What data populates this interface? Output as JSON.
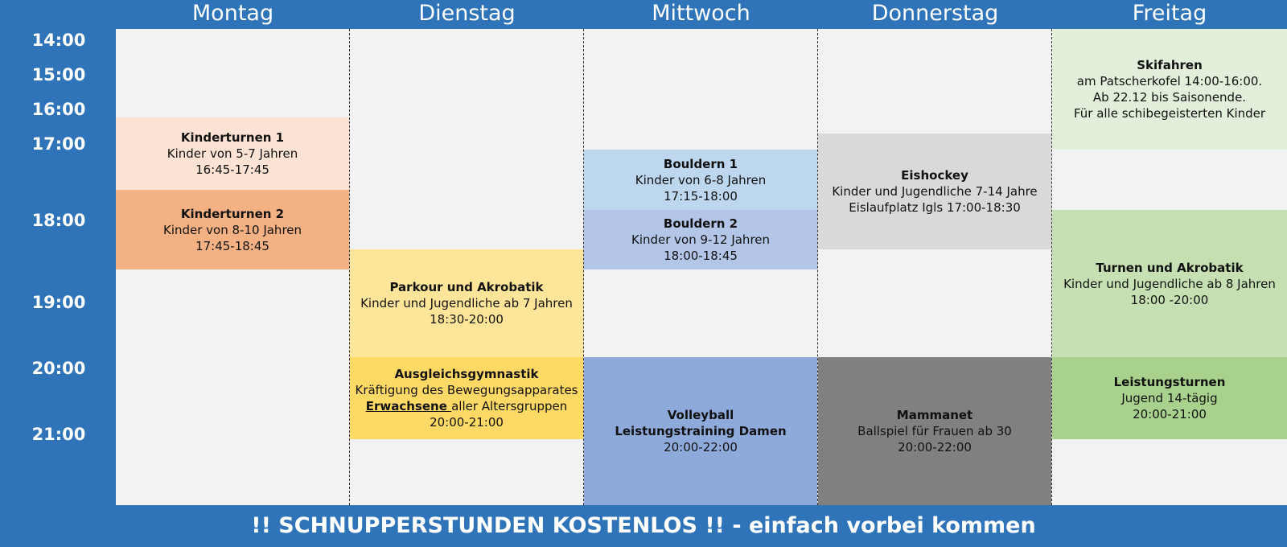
{
  "days": [
    "Montag",
    "Dienstag",
    "Mittwoch",
    "Donnerstag",
    "Freitag"
  ],
  "times": [
    "14:00",
    "15:00",
    "16:00",
    "17:00",
    "18:00",
    "19:00",
    "20:00",
    "21:00"
  ],
  "events": {
    "kinderturnen1": {
      "title": "Kinderturnen 1",
      "line1": "Kinder von 5-7 Jahren",
      "line2": "16:45-17:45",
      "color": "#fde3d4"
    },
    "kinderturnen2": {
      "title": "Kinderturnen 2",
      "line1": "Kinder von 8-10 Jahren",
      "line2": "17:45-18:45",
      "color": "#f4b183"
    },
    "parkour": {
      "title": "Parkour und Akrobatik",
      "line1": "Kinder und Jugendliche ab 7 Jahren",
      "line2": "18:30-20:00",
      "color": "#ffe599"
    },
    "ausgleich": {
      "title": "Ausgleichsgymnastik",
      "line1": "Kräftigung des Bewegungsapparates",
      "line2_underlined": "Erwachsene ",
      "line2_rest": "aller Altersgruppen",
      "line3": "20:00-21:00",
      "color": "#ffd966"
    },
    "bouldern1": {
      "title": "Bouldern 1",
      "line1": "Kinder von 6-8 Jahren",
      "line2": "17:15-18:00",
      "color": "#bdd7ee"
    },
    "bouldern2": {
      "title": "Bouldern 2",
      "line1": "Kinder von 9-12 Jahren",
      "line2": "18:00-18:45",
      "color": "#b4c6e7"
    },
    "volleyball": {
      "title": "Volleyball",
      "line1": "Leistungstraining Damen",
      "line2": "20:00-22:00",
      "color": "#8eaadb"
    },
    "eishockey": {
      "title": "Eishockey",
      "line1": "Kinder und Jugendliche 7-14 Jahre",
      "line2": "Eislaufplatz Igls 17:00-18:30",
      "color": "#d9d9d9"
    },
    "mammanet": {
      "title": "Mammanet",
      "line1": "Ballspiel für Frauen ab 30",
      "line2": "20:00-22:00",
      "color": "#808080"
    },
    "skifahren": {
      "title": "Skifahren",
      "line1": "am Patscherkofel 14:00-16:00.",
      "line2": "Ab 22.12 bis Saisonende.",
      "line3": "Für alle schibegeisterten Kinder",
      "color": "#e2efda"
    },
    "turnen": {
      "title": "Turnen und Akrobatik",
      "line1": "Kinder und Jugendliche ab 8 Jahren",
      "line2": "18:00 -20:00",
      "color": "#c6e0b4"
    },
    "leistungsturnen": {
      "title": "Leistungsturnen",
      "line1": "Jugend 14-tägig",
      "line2": "20:00-21:00",
      "color": "#a9d18e"
    }
  },
  "footer": {
    "bold": "!! SCHNUPPERSTUNDEN KOSTENLOS !!",
    "rest": " - einfach vorbei kommen"
  }
}
